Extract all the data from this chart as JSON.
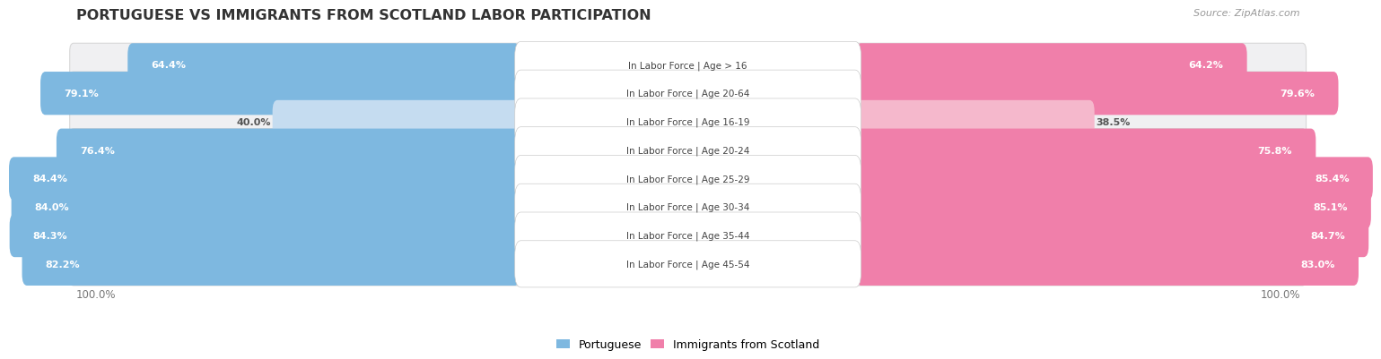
{
  "title": "PORTUGUESE VS IMMIGRANTS FROM SCOTLAND LABOR PARTICIPATION",
  "source": "Source: ZipAtlas.com",
  "categories": [
    "In Labor Force | Age > 16",
    "In Labor Force | Age 20-64",
    "In Labor Force | Age 16-19",
    "In Labor Force | Age 20-24",
    "In Labor Force | Age 25-29",
    "In Labor Force | Age 30-34",
    "In Labor Force | Age 35-44",
    "In Labor Force | Age 45-54"
  ],
  "portuguese_values": [
    64.4,
    79.1,
    40.0,
    76.4,
    84.4,
    84.0,
    84.3,
    82.2
  ],
  "scotland_values": [
    64.2,
    79.6,
    38.5,
    75.8,
    85.4,
    85.1,
    84.7,
    83.0
  ],
  "portuguese_color": "#7eb8e0",
  "portugal_light_color": "#c5dcf0",
  "scotland_color": "#f07faa",
  "scotland_light_color": "#f5b8cc",
  "row_bg_color": "#f0f0f2",
  "max_value": 100.0,
  "legend_portuguese": "Portuguese",
  "legend_scotland": "Immigrants from Scotland",
  "title_fontsize": 11.5,
  "value_fontsize": 8.0,
  "label_fontsize": 7.5
}
